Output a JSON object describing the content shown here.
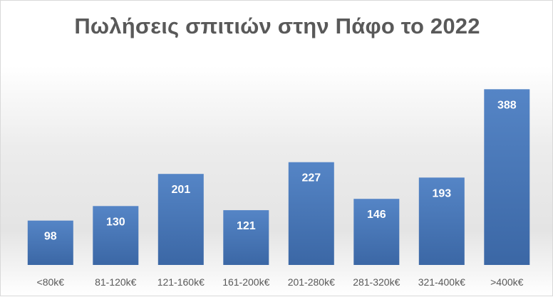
{
  "chart_data": {
    "type": "bar",
    "title": "Πωλήσεις σπιτιών στην Πάφο το 2022",
    "xlabel": "",
    "ylabel": "",
    "categories": [
      "<80k€",
      "81-120k€",
      "121-160k€",
      "161-200k€",
      "201-280k€",
      "281-320k€",
      "321-400k€",
      ">400k€"
    ],
    "values": [
      98,
      130,
      201,
      121,
      227,
      146,
      193,
      388
    ],
    "ylim": [
      0,
      390
    ],
    "grid": false,
    "legend": "none",
    "data_labels": true,
    "colors": {
      "bar_top": "#5585c6",
      "bar_bottom": "#3b67a5",
      "label": "#ffffff",
      "tick": "#595959",
      "title": "#595959"
    }
  }
}
